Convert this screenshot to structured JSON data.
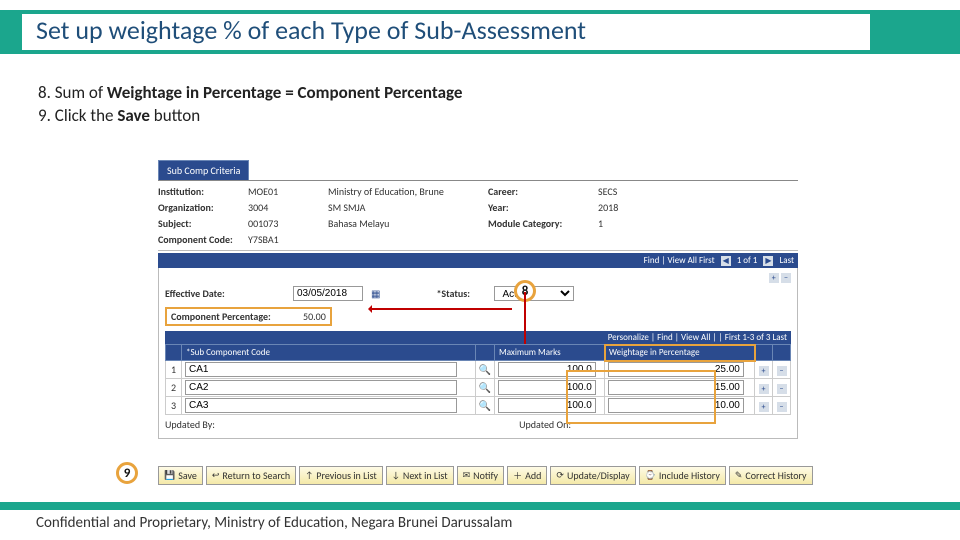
{
  "slide": {
    "title": "Set up weightage % of each Type of Sub-Assessment",
    "step8_prefix": "8. Sum of ",
    "step8_bold": "Weightage in Percentage = Component Percentage",
    "step9_prefix": "9. Click the ",
    "step9_bold": "Save",
    "step9_suffix": " button",
    "footer": "Confidential and Proprietary, Ministry of Education, Negara Brunei Darussalam",
    "callout8": "8",
    "callout9": "9"
  },
  "tabs": {
    "subcomp": "Sub Comp Criteria"
  },
  "header": {
    "institution_lbl": "Institution:",
    "institution_code": "MOE01",
    "institution_name": "Ministry of Education, Brune",
    "career_lbl": "Career:",
    "career_val": "SECS",
    "org_lbl": "Organization:",
    "org_code": "3004",
    "org_name": "SM SMJA",
    "year_lbl": "Year:",
    "year_val": "2018",
    "subject_lbl": "Subject:",
    "subject_code": "001073",
    "subject_name": "Bahasa Melayu",
    "modcat_lbl": "Module Category:",
    "modcat_val": "1",
    "compcode_lbl": "Component Code:",
    "compcode_val": "Y7SBA1"
  },
  "findbar1": {
    "text": "Find | View All   First",
    "nav": "1 of 1",
    "last": "Last"
  },
  "panel": {
    "effdate_lbl": "Effective Date:",
    "effdate_val": "03/05/2018",
    "status_lbl": "*Status:",
    "status_val": "Active",
    "comppct_lbl": "Component Percentage:",
    "comppct_val": "50.00"
  },
  "personalize": "Personalize | Find | View All |   |      First   1-3 of 3   Last",
  "grid": {
    "cols": {
      "subcode": "*Sub Component Code",
      "maxmarks": "Maximum Marks",
      "wpct": "Weightage in Percentage"
    },
    "rows": [
      {
        "n": "1",
        "code": "CA1",
        "max": "100.0",
        "wpct": "25.00"
      },
      {
        "n": "2",
        "code": "CA2",
        "max": "100.0",
        "wpct": "15.00"
      },
      {
        "n": "3",
        "code": "CA3",
        "max": "100.0",
        "wpct": "10.00"
      }
    ]
  },
  "updated": {
    "by_lbl": "Updated By:",
    "on_lbl": "Updated On:"
  },
  "buttons": {
    "save": "Save",
    "return": "Return to Search",
    "prev": "Previous in List",
    "next": "Next in List",
    "notify": "Notify",
    "add": "Add",
    "update": "Update/Display",
    "include": "Include History",
    "correct": "Correct History"
  },
  "colors": {
    "accent": "#1ba68d",
    "ps_blue": "#2b4b8e",
    "highlight": "#e8a33d",
    "arrow": "#c00000"
  }
}
